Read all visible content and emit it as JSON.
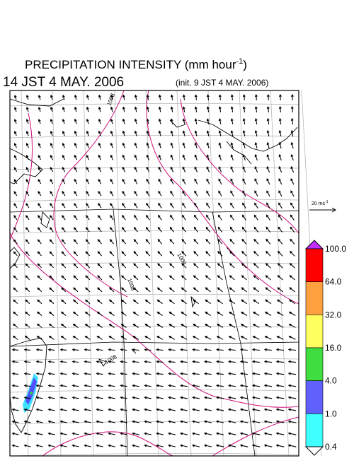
{
  "header": {
    "title": "PRECIPITATION INTENSITY (mm hour",
    "title_exponent": "-1",
    "title_close": ")",
    "valid_time": "14 JST 4 MAY. 2006",
    "init_time": "(init. 9 JST 4 MAY. 2006)"
  },
  "wind_scale": {
    "label": "20 ms",
    "exponent": "-1"
  },
  "colorbar": {
    "levels": [
      {
        "label": "100.0",
        "color": "#ff0000"
      },
      {
        "label": "64.0",
        "color": "#ffa040"
      },
      {
        "label": "32.0",
        "color": "#ffff60"
      },
      {
        "label": "16.0",
        "color": "#40dd40"
      },
      {
        "label": "4.0",
        "color": "#6060ff"
      },
      {
        "label": "1.0",
        "color": "#40ffff"
      },
      {
        "label": "0.4",
        "color": "#ffffff"
      }
    ],
    "top_color": "#c030ff"
  },
  "isobars": {
    "labels": [
      "1008",
      "1009",
      "1008",
      "1008"
    ]
  }
}
